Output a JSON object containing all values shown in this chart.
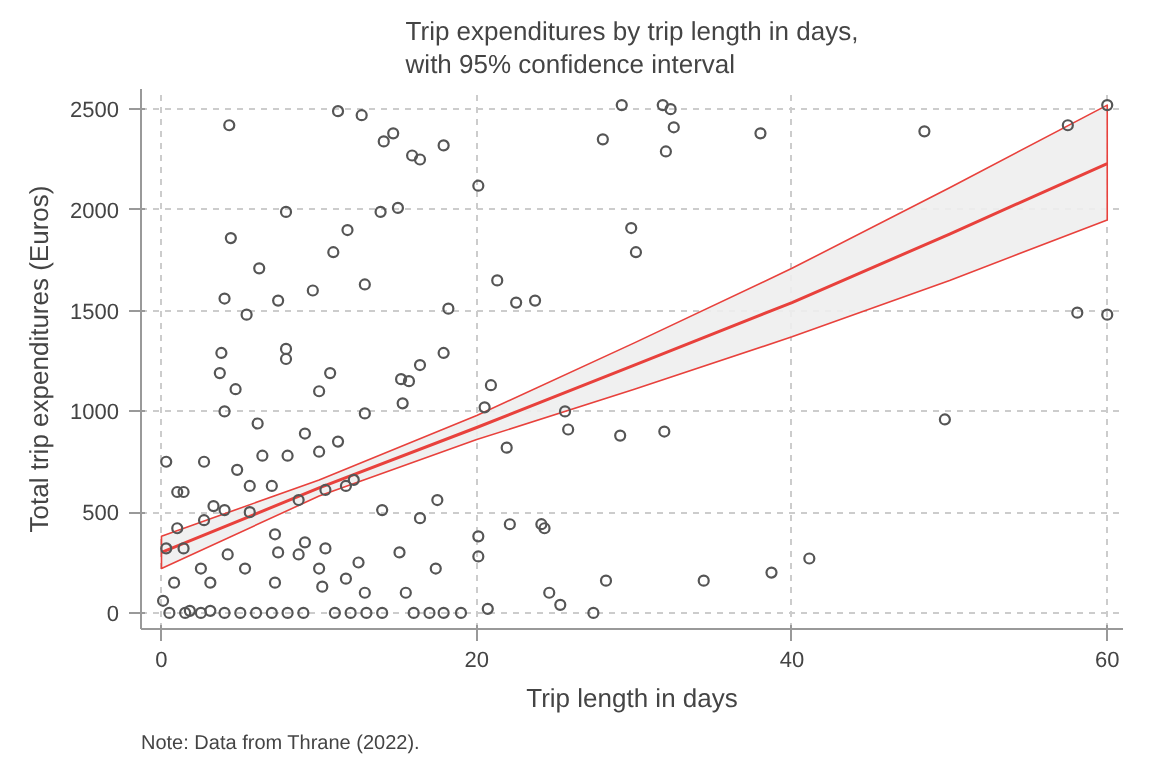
{
  "chart_data": {
    "type": "scatter",
    "title": "Trip expenditures by trip length in days,\nwith 95% confidence interval",
    "xlabel": "Trip length in days",
    "ylabel": "Total trip expenditures (Euros)",
    "annotations": [
      "Note: Data from Thrane (2022)."
    ],
    "xlim": [
      -1.3,
      61
    ],
    "ylim": [
      -80,
      2600
    ],
    "xticks": [
      0,
      20,
      40,
      60
    ],
    "yticks": [
      0,
      500,
      1000,
      1500,
      2000,
      2500
    ],
    "grid": true,
    "marker": "circle",
    "series": [
      {
        "color": "#555555",
        "x": [
          29.2,
          31.8,
          32.3,
          32.5,
          28.0,
          32.0,
          38.0,
          48.4,
          57.5,
          60,
          20.1,
          29.8,
          30.1,
          21.3,
          22.5,
          23.7,
          58.1,
          60,
          20.9,
          20.5,
          25.6,
          25.8,
          21.9,
          29.1,
          31.9,
          49.7,
          22.1,
          24.1,
          24.3,
          20.1,
          20.1,
          41.1,
          38.7,
          28.2,
          34.4,
          24.6,
          25.3,
          20.7,
          27.4,
          4.3,
          11.2,
          12.7,
          14.1,
          14.7,
          15.9,
          16.4,
          17.9,
          7.9,
          13.9,
          15.0,
          4.4,
          11.8,
          10.9,
          6.2,
          12.9,
          4.0,
          7.4,
          9.6,
          18.2,
          5.4,
          0.3,
          1.0,
          3.8,
          7.9,
          7.9,
          10.7,
          16.4,
          17.9,
          15.2,
          15.7,
          3.7,
          4.7,
          4.0,
          6.1,
          10.0,
          12.9,
          15.3,
          9.1,
          8.0,
          2.7,
          4.8,
          1.4,
          7.0,
          11.7,
          14.0,
          16.4,
          17.5,
          17.4,
          15.1,
          12.5,
          10.4,
          9.1,
          7.4,
          5.3,
          3.1,
          1.4,
          0.3,
          0.1,
          1.8,
          3.1,
          7.2,
          10.2,
          12.9,
          15.5,
          17.9,
          1.0,
          2.7,
          4.0,
          5.6,
          8.7,
          10.4,
          6.4,
          5.6,
          3.3,
          10.0,
          11.2,
          12.2,
          7.2,
          8.7,
          10.0,
          11.7,
          4.2,
          2.5,
          0.8,
          0.5,
          1.5,
          2.5,
          4,
          5,
          6,
          7,
          8,
          9,
          11,
          12,
          13,
          14,
          16,
          17,
          19
        ],
        "values": [
          2520,
          2520,
          2500,
          2410,
          2350,
          2290,
          2380,
          2390,
          2420,
          2520,
          2120,
          1910,
          1790,
          1650,
          1540,
          1550,
          1490,
          1480,
          1130,
          1020,
          1000,
          910,
          820,
          880,
          900,
          960,
          440,
          440,
          420,
          380,
          280,
          270,
          200,
          160,
          160,
          100,
          40,
          20,
          0,
          2420,
          2490,
          2470,
          2340,
          2380,
          2270,
          2250,
          2320,
          1990,
          1990,
          2010,
          1860,
          1900,
          1790,
          1710,
          1630,
          1560,
          1550,
          1600,
          1510,
          1480,
          750,
          600,
          1290,
          1310,
          1260,
          1190,
          1230,
          1290,
          1160,
          1150,
          1190,
          1110,
          1000,
          940,
          1100,
          990,
          1040,
          890,
          780,
          750,
          710,
          600,
          630,
          630,
          510,
          470,
          560,
          220,
          300,
          250,
          320,
          350,
          300,
          220,
          150,
          320,
          320,
          60,
          10,
          10,
          150,
          130,
          100,
          100,
          0,
          420,
          460,
          510,
          500,
          560,
          610,
          780,
          630,
          530,
          800,
          850,
          660,
          390,
          290,
          220,
          170,
          290,
          220,
          150,
          0,
          0,
          0,
          0,
          0,
          0,
          0,
          0,
          0,
          0,
          0,
          0,
          0,
          0,
          0,
          0
        ]
      },
      {
        "type": "line",
        "marker": "none",
        "color": "#e8413c",
        "x": [
          0,
          10,
          20,
          30,
          40,
          50,
          60
        ],
        "values": [
          300,
          620,
          920,
          1230,
          1540,
          1880,
          2230
        ],
        "lower": [
          220,
          580,
          860,
          1110,
          1370,
          1650,
          1950
        ],
        "upper": [
          380,
          660,
          980,
          1340,
          1710,
          2110,
          2520
        ]
      }
    ]
  }
}
